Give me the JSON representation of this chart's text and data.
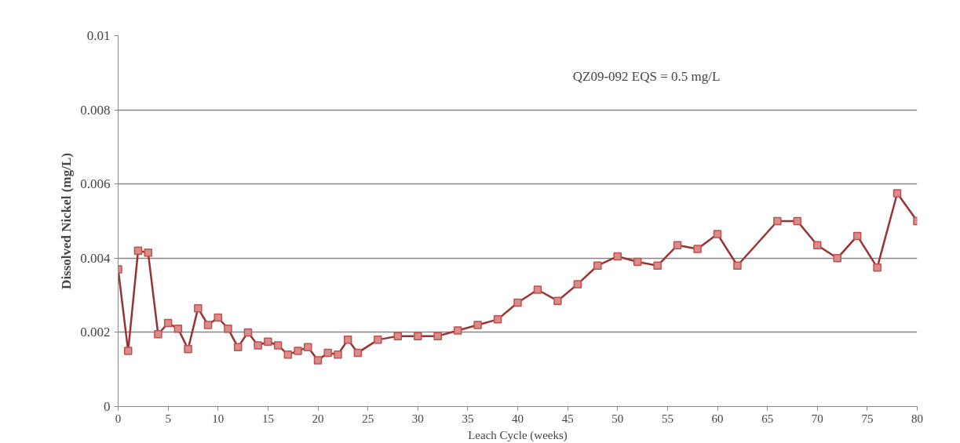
{
  "chart_data": {
    "type": "line",
    "xlabel": "Leach Cycle (weeks)",
    "ylabel": "Dissolved Nickel (mg/L)",
    "annotations": [
      "QZ09-092 EQS = 0.5 mg/L"
    ],
    "x": [
      0,
      1,
      2,
      3,
      4,
      5,
      6,
      7,
      8,
      9,
      10,
      11,
      12,
      13,
      14,
      15,
      16,
      17,
      18,
      19,
      20,
      21,
      22,
      23,
      24,
      26,
      28,
      30,
      32,
      34,
      36,
      38,
      40,
      42,
      44,
      46,
      48,
      50,
      52,
      54,
      56,
      58,
      60,
      62,
      66,
      68,
      70,
      72,
      74,
      76,
      78,
      80
    ],
    "series": [
      {
        "color": "#993333",
        "values": [
          0.0037,
          0.0015,
          0.0042,
          0.00415,
          0.00195,
          0.00225,
          0.0021,
          0.00155,
          0.00265,
          0.0022,
          0.0024,
          0.0021,
          0.0016,
          0.002,
          0.00165,
          0.00175,
          0.00165,
          0.0014,
          0.0015,
          0.0016,
          0.00125,
          0.00145,
          0.0014,
          0.0018,
          0.00145,
          0.0018,
          0.0019,
          0.0019,
          0.0019,
          0.00205,
          0.0022,
          0.00235,
          0.0028,
          0.00315,
          0.00285,
          0.0033,
          0.0038,
          0.00405,
          0.0039,
          0.0038,
          0.00435,
          0.00425,
          0.00465,
          0.0038,
          0.005,
          0.005,
          0.00435,
          0.004,
          0.0046,
          0.00375,
          0.00575,
          0.005
        ]
      }
    ],
    "marker": "square",
    "line_style": "solid",
    "grid": "y",
    "xlim": [
      0,
      80
    ],
    "ylim": [
      0,
      0.01
    ],
    "xticks": [
      0,
      5,
      10,
      15,
      20,
      25,
      30,
      35,
      40,
      45,
      50,
      55,
      60,
      65,
      70,
      75,
      80
    ],
    "yticks": [
      0,
      0.002,
      0.004,
      0.006,
      0.008,
      0.01
    ]
  }
}
